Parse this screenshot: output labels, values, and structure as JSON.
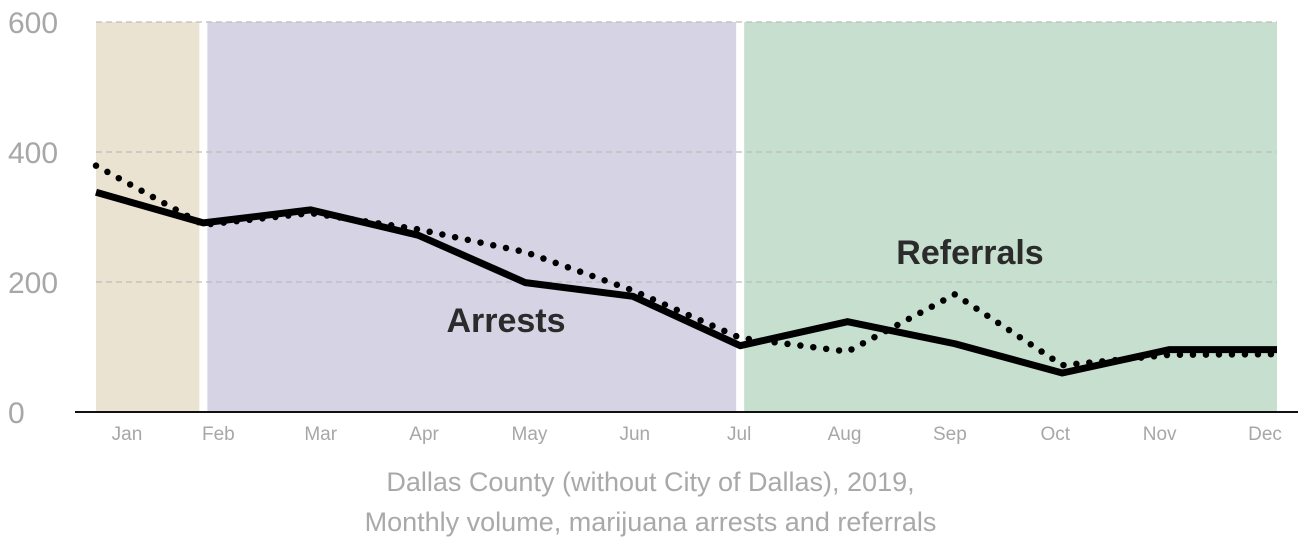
{
  "chart_data": {
    "type": "line",
    "categories": [
      "Jan",
      "Feb",
      "Mar",
      "Apr",
      "May",
      "Jun",
      "Jul",
      "Aug",
      "Sep",
      "Oct",
      "Nov",
      "Dec"
    ],
    "ylim": [
      0,
      600
    ],
    "yticks": [
      0,
      200,
      400,
      600
    ],
    "grid": true,
    "series": [
      {
        "name": "Arrests",
        "style": "solid",
        "color": "#000000",
        "values": [
          338,
          291,
          311,
          272,
          199,
          178,
          102,
          139,
          105,
          60,
          96,
          96
        ]
      },
      {
        "name": "Referrals",
        "style": "dotted",
        "color": "#000000",
        "values": [
          379,
          288,
          306,
          281,
          246,
          187,
          114,
          93,
          181,
          72,
          88,
          89
        ]
      }
    ],
    "bands": [
      {
        "from": 0,
        "to": 1,
        "color": "#ebe3d2"
      },
      {
        "from": 1,
        "to": 6,
        "color": "#d6d3e4"
      },
      {
        "from": 6,
        "to": 11,
        "color": "#c6dfcf"
      }
    ],
    "caption_line1": "Dallas County (without City of Dallas), 2019,",
    "caption_line2": "Monthly volume, marijuana arrests and referrals"
  }
}
